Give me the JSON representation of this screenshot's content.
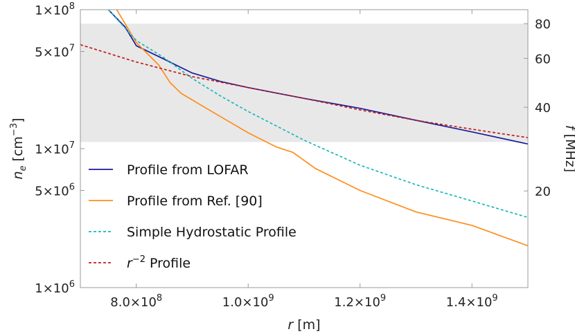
{
  "chart_data": {
    "type": "line",
    "x_label": "r [m]",
    "y_label": "n_e [cm^-3]",
    "y2_label": "f [MHz]",
    "y_scale": "log",
    "y2_scale": "log",
    "xlim": [
      700000000,
      1500000000
    ],
    "ylim": [
      1000000,
      100000000
    ],
    "x_ticks": [
      {
        "value": 800000000,
        "mant": "8.0",
        "exp": "8"
      },
      {
        "value": 1000000000,
        "mant": "1.0",
        "exp": "9"
      },
      {
        "value": 1200000000,
        "mant": "1.2",
        "exp": "9"
      },
      {
        "value": 1400000000,
        "mant": "1.4",
        "exp": "9"
      }
    ],
    "y_ticks": [
      {
        "value": 1000000,
        "mant": "1",
        "exp": "6"
      },
      {
        "value": 5000000,
        "mant": "5",
        "exp": "6"
      },
      {
        "value": 10000000,
        "mant": "1",
        "exp": "7"
      },
      {
        "value": 50000000,
        "mant": "5",
        "exp": "7"
      },
      {
        "value": 100000000,
        "mant": "1",
        "exp": "8"
      }
    ],
    "y2_ticks": [
      {
        "value": 80,
        "label": "80"
      },
      {
        "value": 60,
        "label": "60"
      },
      {
        "value": 40,
        "label": "40"
      },
      {
        "value": 20,
        "label": "20"
      }
    ],
    "shaded_band_frequency_MHz": [
      30,
      80
    ],
    "series": [
      {
        "name": "Profile from LOFAR",
        "color": "#1a1a99",
        "dash": "solid",
        "points": [
          [
            750000000,
            100000000
          ],
          [
            780000000,
            75000000
          ],
          [
            800000000,
            55000000
          ],
          [
            850000000,
            44000000
          ],
          [
            900000000,
            35000000
          ],
          [
            950000000,
            30500000
          ],
          [
            1000000000,
            27500000
          ],
          [
            1100000000,
            23000000
          ],
          [
            1200000000,
            19500000
          ],
          [
            1300000000,
            16000000
          ],
          [
            1400000000,
            13200000
          ],
          [
            1500000000,
            10800000
          ]
        ]
      },
      {
        "name": "Profile from Ref. [90]",
        "color": "#ff8c1a",
        "dash": "solid",
        "points": [
          [
            765000000,
            100000000
          ],
          [
            800000000,
            58000000
          ],
          [
            840000000,
            40000000
          ],
          [
            860000000,
            30000000
          ],
          [
            880000000,
            25000000
          ],
          [
            940000000,
            18000000
          ],
          [
            1000000000,
            13000000
          ],
          [
            1050000000,
            10300000
          ],
          [
            1080000000,
            9400000
          ],
          [
            1120000000,
            7200000
          ],
          [
            1200000000,
            5000000
          ],
          [
            1300000000,
            3500000
          ],
          [
            1400000000,
            2800000
          ],
          [
            1500000000,
            2000000
          ]
        ]
      },
      {
        "name": "Simple Hydrostatic Profile",
        "color": "#1ab8b8",
        "dash": "dashed",
        "points": [
          [
            750000000,
            100000000
          ],
          [
            800000000,
            60000000
          ],
          [
            850000000,
            45000000
          ],
          [
            900000000,
            32000000
          ],
          [
            950000000,
            24000000
          ],
          [
            1000000000,
            18500000
          ],
          [
            1100000000,
            11500000
          ],
          [
            1200000000,
            7600000
          ],
          [
            1300000000,
            5500000
          ],
          [
            1400000000,
            4200000
          ],
          [
            1500000000,
            3200000
          ]
        ]
      },
      {
        "name": "r^-2 Profile",
        "color": "#c01a1a",
        "dash": "dashed",
        "points": [
          [
            700000000,
            56000000
          ],
          [
            800000000,
            42000000
          ],
          [
            900000000,
            33000000
          ],
          [
            1000000000,
            27500000
          ],
          [
            1100000000,
            23000000
          ],
          [
            1200000000,
            19000000
          ],
          [
            1300000000,
            16000000
          ],
          [
            1400000000,
            13800000
          ],
          [
            1500000000,
            12000000
          ]
        ]
      }
    ],
    "legend": {
      "placement": "bottom-left",
      "entries": [
        {
          "label": "Profile from LOFAR",
          "color": "#1a1a99",
          "dash": "solid"
        },
        {
          "label": "Profile from Ref. [90]",
          "color": "#ff8c1a",
          "dash": "solid"
        },
        {
          "label": "Simple Hydrostatic Profile",
          "color": "#1ab8b8",
          "dash": "dashed"
        },
        {
          "label": "Profile",
          "color": "#c01a1a",
          "dash": "dashed",
          "prefix_base": "r",
          "prefix_exp": "−2"
        }
      ]
    }
  }
}
